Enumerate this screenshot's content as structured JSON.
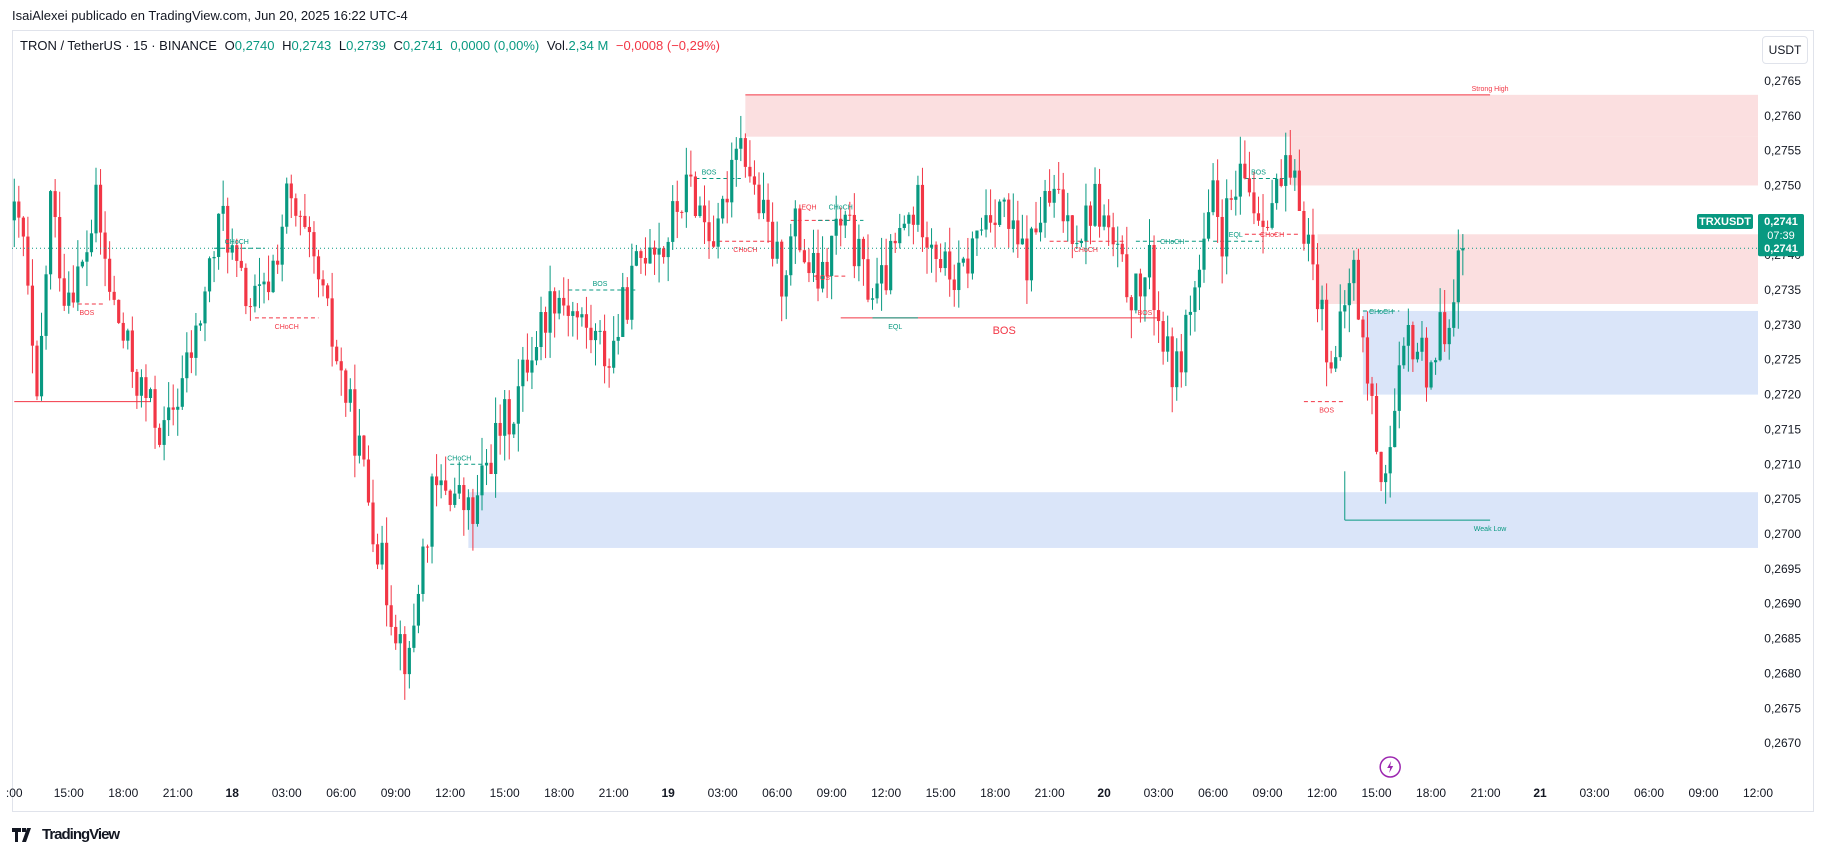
{
  "publisher_line": "IsaiAlexei publicado en TradingView.com, Jun 20, 2025 16:22 UTC-4",
  "legend": {
    "symbol": "TRON / TetherUS · 15 · BINANCE",
    "o_label": "O",
    "o_value": "0,2740",
    "h_label": "H",
    "h_value": "0,2743",
    "l_label": "L",
    "l_value": "0,2739",
    "c_label": "C",
    "c_value": "0,2741",
    "change": "0,0000 (0,00%)",
    "vol_label": "Vol.",
    "vol_value": "2,34 M",
    "vol_change": "−0,0008 (−0,29%)"
  },
  "currency_button": "USDT",
  "footer": {
    "logo_icon": "tradingview-logo-icon",
    "brand": "TradingView"
  },
  "colors": {
    "up": "#089981",
    "down": "#f23645",
    "supply_zone": "#f9d4d6",
    "demand_zone": "#cddcf7",
    "price_tag": "#089981",
    "bolt": "#9c27b0"
  },
  "chart_data": {
    "type": "candlestick",
    "symbol": "TRXUSDT",
    "timeframe": "15",
    "ylim": [
      0.2665,
      0.2768
    ],
    "y_ticks": [
      "0,2765",
      "0,2760",
      "0,2755",
      "0,2750",
      "0,2745",
      "0,2740",
      "0,2735",
      "0,2730",
      "0,2725",
      "0,2720",
      "0,2715",
      "0,2710",
      "0,2705",
      "0,2700",
      "0,2695",
      "0,2690",
      "0,2685",
      "0,2680",
      "0,2675",
      "0,2670"
    ],
    "y_tick_values": [
      0.2765,
      0.276,
      0.2755,
      0.275,
      0.2745,
      0.274,
      0.2735,
      0.273,
      0.2725,
      0.272,
      0.2715,
      0.271,
      0.2705,
      0.27,
      0.2695,
      0.269,
      0.2685,
      0.268,
      0.2675,
      0.267
    ],
    "x_ticks": [
      ":00",
      "15:00",
      "18:00",
      "21:00",
      "18",
      "03:00",
      "06:00",
      "09:00",
      "12:00",
      "15:00",
      "18:00",
      "21:00",
      "19",
      "03:00",
      "06:00",
      "09:00",
      "12:00",
      "15:00",
      "18:00",
      "21:00",
      "20",
      "03:00",
      "06:00",
      "09:00",
      "12:00",
      "15:00",
      "18:00",
      "21:00",
      "21",
      "03:00",
      "06:00",
      "09:00",
      "12:00"
    ],
    "x_tick_bars": [
      0,
      12,
      24,
      36,
      48,
      60,
      72,
      84,
      96,
      108,
      120,
      132,
      144,
      156,
      168,
      180,
      192,
      204,
      216,
      228,
      240,
      252,
      264,
      276,
      288,
      300,
      312,
      324,
      336,
      348,
      360,
      372,
      384
    ],
    "last_price": {
      "symbol": "TRXUSDT",
      "value": 0.2741,
      "label": "0,2741",
      "countdown": "07:39"
    },
    "path": [
      [
        0,
        0.2745
      ],
      [
        2,
        0.2742
      ],
      [
        5,
        0.2717
      ],
      [
        8,
        0.2748
      ],
      [
        11,
        0.2735
      ],
      [
        15,
        0.2738
      ],
      [
        18,
        0.2747
      ],
      [
        21,
        0.2735
      ],
      [
        24,
        0.2728
      ],
      [
        27,
        0.2722
      ],
      [
        30,
        0.2718
      ],
      [
        33,
        0.2714
      ],
      [
        36,
        0.272
      ],
      [
        40,
        0.2728
      ],
      [
        43,
        0.2738
      ],
      [
        46,
        0.2746
      ],
      [
        49,
        0.2737
      ],
      [
        52,
        0.2733
      ],
      [
        55,
        0.2734
      ],
      [
        58,
        0.2741
      ],
      [
        60,
        0.2748
      ],
      [
        62,
        0.2745
      ],
      [
        64,
        0.2742
      ],
      [
        67,
        0.2736
      ],
      [
        70,
        0.2728
      ],
      [
        73,
        0.272
      ],
      [
        76,
        0.2712
      ],
      [
        79,
        0.2702
      ],
      [
        82,
        0.2692
      ],
      [
        85,
        0.2685
      ],
      [
        87,
        0.2681
      ],
      [
        89,
        0.2693
      ],
      [
        92,
        0.2705
      ],
      [
        95,
        0.2707
      ],
      [
        98,
        0.2705
      ],
      [
        101,
        0.2702
      ],
      [
        104,
        0.271
      ],
      [
        107,
        0.2715
      ],
      [
        110,
        0.2718
      ],
      [
        113,
        0.2725
      ],
      [
        116,
        0.273
      ],
      [
        119,
        0.2735
      ],
      [
        122,
        0.2733
      ],
      [
        125,
        0.273
      ],
      [
        128,
        0.2728
      ],
      [
        131,
        0.2725
      ],
      [
        134,
        0.2732
      ],
      [
        137,
        0.2738
      ],
      [
        140,
        0.2743
      ],
      [
        143,
        0.2741
      ],
      [
        146,
        0.2747
      ],
      [
        149,
        0.275
      ],
      [
        152,
        0.2745
      ],
      [
        155,
        0.2742
      ],
      [
        157,
        0.275
      ],
      [
        159,
        0.2758
      ],
      [
        161,
        0.2755
      ],
      [
        163,
        0.2749
      ],
      [
        166,
        0.2743
      ],
      [
        169,
        0.2737
      ],
      [
        172,
        0.2744
      ],
      [
        175,
        0.2738
      ],
      [
        178,
        0.2736
      ],
      [
        181,
        0.2744
      ],
      [
        184,
        0.2743
      ],
      [
        187,
        0.2737
      ],
      [
        190,
        0.2734
      ],
      [
        193,
        0.2739
      ],
      [
        196,
        0.2744
      ],
      [
        199,
        0.2747
      ],
      [
        202,
        0.2743
      ],
      [
        205,
        0.2738
      ],
      [
        208,
        0.2736
      ],
      [
        211,
        0.2741
      ],
      [
        214,
        0.2746
      ],
      [
        217,
        0.2748
      ],
      [
        220,
        0.2742
      ],
      [
        223,
        0.2739
      ],
      [
        226,
        0.2746
      ],
      [
        229,
        0.2748
      ],
      [
        232,
        0.2745
      ],
      [
        235,
        0.2744
      ],
      [
        238,
        0.2748
      ],
      [
        241,
        0.2743
      ],
      [
        244,
        0.2737
      ],
      [
        247,
        0.2734
      ],
      [
        250,
        0.2738
      ],
      [
        252,
        0.2731
      ],
      [
        254,
        0.2725
      ],
      [
        256,
        0.2723
      ],
      [
        258,
        0.273
      ],
      [
        260,
        0.2735
      ],
      [
        262,
        0.274
      ],
      [
        264,
        0.2748
      ],
      [
        266,
        0.2743
      ],
      [
        268,
        0.2747
      ],
      [
        271,
        0.2751
      ],
      [
        274,
        0.2746
      ],
      [
        277,
        0.2748
      ],
      [
        280,
        0.2751
      ],
      [
        283,
        0.2748
      ],
      [
        285,
        0.2742
      ],
      [
        287,
        0.2735
      ],
      [
        289,
        0.2728
      ],
      [
        291,
        0.2724
      ],
      [
        293,
        0.2733
      ],
      [
        295,
        0.2738
      ],
      [
        297,
        0.2727
      ],
      [
        299,
        0.2718
      ],
      [
        301,
        0.2709
      ],
      [
        303,
        0.2712
      ],
      [
        305,
        0.2721
      ],
      [
        307,
        0.2728
      ],
      [
        309,
        0.2727
      ],
      [
        311,
        0.2724
      ],
      [
        313,
        0.2727
      ],
      [
        315,
        0.273
      ],
      [
        317,
        0.2736
      ],
      [
        319,
        0.2741
      ]
    ],
    "zones": [
      {
        "label": "Strong High",
        "kind": "supply",
        "x0": 161,
        "x1": 384,
        "y0": 0.2763,
        "y1": 0.2757,
        "extend_x1": 325
      },
      {
        "label": "",
        "kind": "supply",
        "x0": 281,
        "x1": 384,
        "y0": 0.2757,
        "y1": 0.275
      },
      {
        "label": "",
        "kind": "supply",
        "x0": 287,
        "x1": 384,
        "y0": 0.2743,
        "y1": 0.2733
      },
      {
        "label": "",
        "kind": "demand",
        "x0": 297,
        "x1": 384,
        "y0": 0.2732,
        "y1": 0.272
      },
      {
        "label": "",
        "kind": "demand",
        "x0": 100,
        "x1": 384,
        "y0": 0.2706,
        "y1": 0.2698
      },
      {
        "label": "Weak Low",
        "kind": "low_line",
        "x0": 293,
        "x1": 325,
        "y0": 0.2702,
        "y1": 0.2702
      }
    ],
    "structure_labels": [
      {
        "text": "BOS",
        "x": 16,
        "y": 0.2733,
        "color": "down",
        "below": true
      },
      {
        "text": "CHoCH",
        "x": 49,
        "y": 0.2741,
        "color": "up"
      },
      {
        "text": "CHoCH",
        "x": 60,
        "y": 0.2731,
        "color": "down",
        "below": true
      },
      {
        "text": "BOS",
        "x": 129,
        "y": 0.2735,
        "color": "up"
      },
      {
        "text": "CHoCH",
        "x": 98,
        "y": 0.271,
        "color": "up"
      },
      {
        "text": "BOS",
        "x": 153,
        "y": 0.2751,
        "color": "up"
      },
      {
        "text": "CHoCH",
        "x": 161,
        "y": 0.2742,
        "color": "down",
        "below": true
      },
      {
        "text": "EQH",
        "x": 175,
        "y": 0.2746,
        "color": "down"
      },
      {
        "text": "CHoCH",
        "x": 182,
        "y": 0.2746,
        "color": "up"
      },
      {
        "text": "BOS",
        "x": 178,
        "y": 0.2738,
        "color": "down",
        "below": true
      },
      {
        "text": "EQL",
        "x": 194,
        "y": 0.2731,
        "color": "up",
        "below": true
      },
      {
        "text": "BOS",
        "x": 218,
        "y": 0.2731,
        "color": "down",
        "below": true,
        "big": true
      },
      {
        "text": "CHoCH",
        "x": 236,
        "y": 0.2742,
        "color": "down",
        "below": true
      },
      {
        "text": "CHoCH",
        "x": 255,
        "y": 0.2741,
        "color": "up"
      },
      {
        "text": "BOS",
        "x": 249,
        "y": 0.2733,
        "color": "down",
        "below": true
      },
      {
        "text": "EQL",
        "x": 269,
        "y": 0.2742,
        "color": "up"
      },
      {
        "text": "CHoCH",
        "x": 277,
        "y": 0.2742,
        "color": "down"
      },
      {
        "text": "BOS",
        "x": 274,
        "y": 0.2751,
        "color": "up"
      },
      {
        "text": "BOS",
        "x": 289,
        "y": 0.2719,
        "color": "down",
        "below": true
      },
      {
        "text": "CHoCH",
        "x": 301,
        "y": 0.2731,
        "color": "up"
      },
      {
        "text": "Strong High",
        "x": 325,
        "y": 0.2763,
        "color": "down"
      },
      {
        "text": "Weak Low",
        "x": 325,
        "y": 0.2702,
        "color": "up",
        "below": true
      }
    ],
    "structure_lines": [
      {
        "x0": 0,
        "x1": 30,
        "y": 0.2719,
        "color": "down",
        "dashed": false
      },
      {
        "x0": 14,
        "x1": 20,
        "y": 0.2733,
        "color": "down",
        "dashed": true
      },
      {
        "x0": 44,
        "x1": 55,
        "y": 0.2741,
        "color": "up",
        "dashed": true
      },
      {
        "x0": 53,
        "x1": 67,
        "y": 0.2731,
        "color": "down",
        "dashed": true
      },
      {
        "x0": 96,
        "x1": 104,
        "y": 0.271,
        "color": "up",
        "dashed": true
      },
      {
        "x0": 122,
        "x1": 137,
        "y": 0.2735,
        "color": "up",
        "dashed": true
      },
      {
        "x0": 150,
        "x1": 160,
        "y": 0.2751,
        "color": "up",
        "dashed": true
      },
      {
        "x0": 155,
        "x1": 167,
        "y": 0.2742,
        "color": "down",
        "dashed": true
      },
      {
        "x0": 171,
        "x1": 181,
        "y": 0.2745,
        "color": "down",
        "dashed": true
      },
      {
        "x0": 177,
        "x1": 187,
        "y": 0.2745,
        "color": "up",
        "dashed": true
      },
      {
        "x0": 176,
        "x1": 183,
        "y": 0.2737,
        "color": "down",
        "dashed": true
      },
      {
        "x0": 182,
        "x1": 252,
        "y": 0.2731,
        "color": "down",
        "dashed": false
      },
      {
        "x0": 189,
        "x1": 199,
        "y": 0.2731,
        "color": "up",
        "dashed": false
      },
      {
        "x0": 228,
        "x1": 245,
        "y": 0.2742,
        "color": "down",
        "dashed": true
      },
      {
        "x0": 247,
        "x1": 262,
        "y": 0.2742,
        "color": "up",
        "dashed": true
      },
      {
        "x0": 264,
        "x1": 275,
        "y": 0.2742,
        "color": "up",
        "dashed": true
      },
      {
        "x0": 271,
        "x1": 283,
        "y": 0.2743,
        "color": "down",
        "dashed": true
      },
      {
        "x0": 271,
        "x1": 280,
        "y": 0.2751,
        "color": "up",
        "dashed": true
      },
      {
        "x0": 284,
        "x1": 293,
        "y": 0.2719,
        "color": "down",
        "dashed": true
      },
      {
        "x0": 297,
        "x1": 305,
        "y": 0.2732,
        "color": "up",
        "dashed": true
      }
    ]
  }
}
